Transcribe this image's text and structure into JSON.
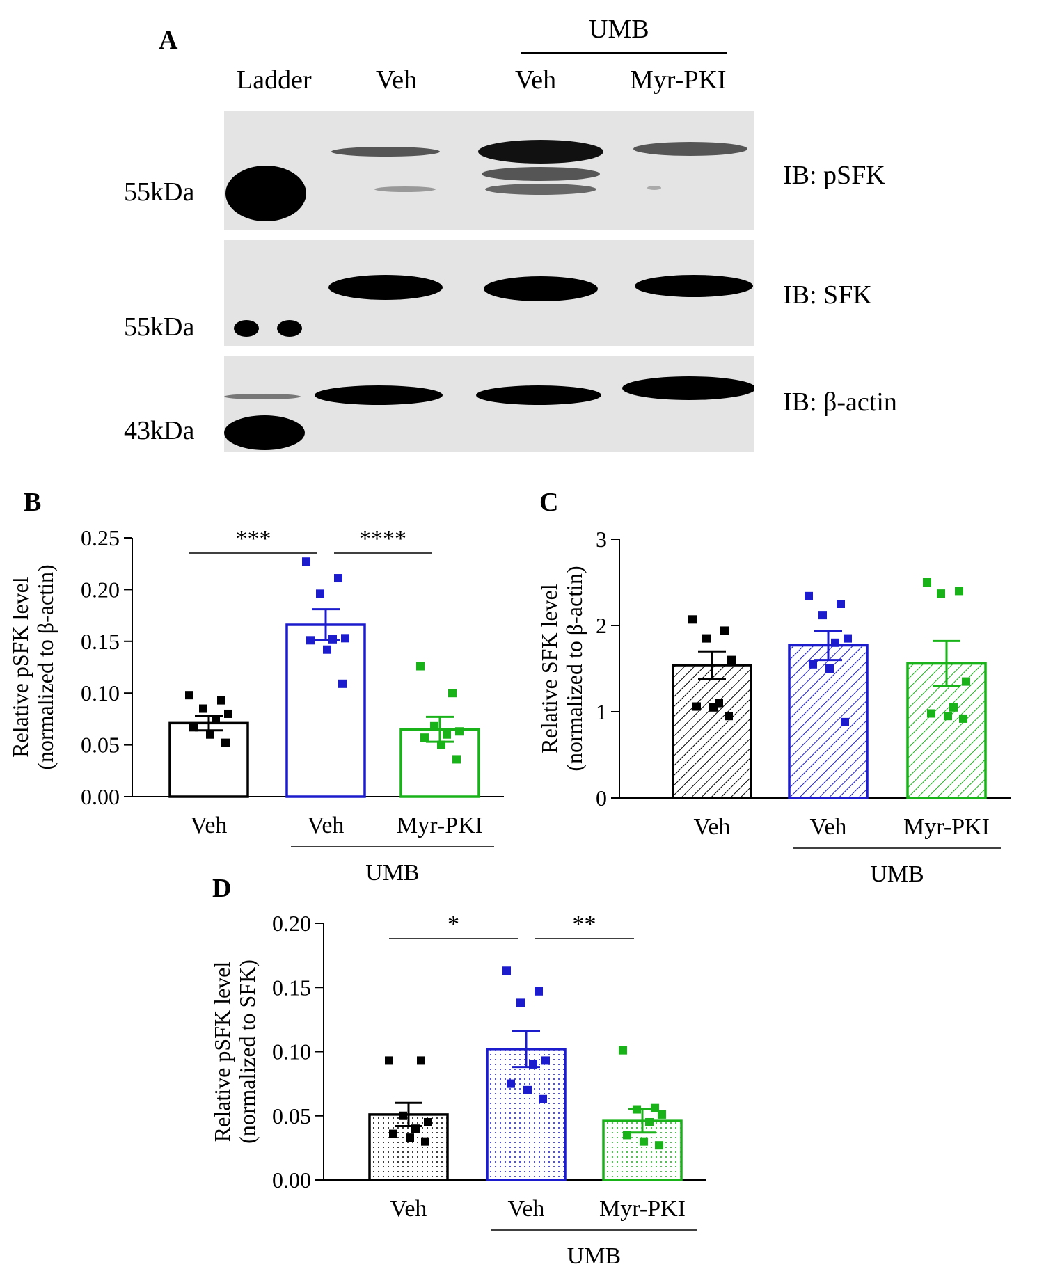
{
  "panels": {
    "a": {
      "letter": "A"
    },
    "b": {
      "letter": "B"
    },
    "c": {
      "letter": "C"
    },
    "d": {
      "letter": "D"
    }
  },
  "western_blot": {
    "group_label": "UMB",
    "lanes": [
      "Ladder",
      "Veh",
      "Veh",
      "Myr-PKI"
    ],
    "markers": [
      "55kDa",
      "55kDa",
      "43kDa"
    ],
    "strips": [
      "IB: pSFK",
      "IB: SFK",
      "IB: β-actin"
    ]
  },
  "colors": {
    "veh": "#000000",
    "umb_veh": "#1c1ccc",
    "umb_pki": "#19b219"
  },
  "chart_data": [
    {
      "id": "b",
      "type": "bar",
      "fill": "open",
      "ylabel_line1": "Relative pSFK level",
      "ylabel_line2": "(normalized to β-actin)",
      "categories": [
        "Veh",
        "Veh",
        "Myr-PKI"
      ],
      "group_label": "UMB",
      "ylim": [
        0,
        0.25
      ],
      "yticks": [
        "0.00",
        "0.05",
        "0.10",
        "0.15",
        "0.20",
        "0.25"
      ],
      "values": [
        0.071,
        0.166,
        0.065
      ],
      "sem": [
        0.007,
        0.015,
        0.012
      ],
      "points": [
        [
          0.098,
          0.093,
          0.085,
          0.08,
          0.074,
          0.067,
          0.06,
          0.052
        ],
        [
          0.227,
          0.211,
          0.196,
          0.153,
          0.152,
          0.151,
          0.142,
          0.109
        ],
        [
          0.126,
          0.1,
          0.068,
          0.063,
          0.06,
          0.057,
          0.05,
          0.036
        ]
      ],
      "significance": [
        {
          "from": 0,
          "to": 1,
          "label": "***"
        },
        {
          "from": 1,
          "to": 2,
          "label": "****"
        }
      ]
    },
    {
      "id": "c",
      "type": "bar",
      "fill": "hatch",
      "ylabel_line1": "Relative SFK level",
      "ylabel_line2": "(normalized to β-actin)",
      "categories": [
        "Veh",
        "Veh",
        "Myr-PKI"
      ],
      "group_label": "UMB",
      "ylim": [
        0,
        3
      ],
      "yticks": [
        "0",
        "1",
        "2",
        "3"
      ],
      "values": [
        1.54,
        1.77,
        1.56
      ],
      "sem": [
        0.16,
        0.17,
        0.26
      ],
      "points": [
        [
          2.07,
          1.94,
          1.85,
          1.6,
          1.1,
          1.06,
          1.05,
          0.95
        ],
        [
          2.34,
          2.25,
          2.12,
          1.85,
          1.8,
          1.55,
          1.5,
          0.88
        ],
        [
          2.5,
          2.4,
          2.37,
          1.35,
          1.05,
          0.98,
          0.95,
          0.92
        ]
      ],
      "significance": []
    },
    {
      "id": "d",
      "type": "bar",
      "fill": "dots",
      "ylabel_line1": "Relative pSFK level",
      "ylabel_line2": "(normalized to SFK)",
      "categories": [
        "Veh",
        "Veh",
        "Myr-PKI"
      ],
      "group_label": "UMB",
      "ylim": [
        0,
        0.2
      ],
      "yticks": [
        "0.00",
        "0.05",
        "0.10",
        "0.15",
        "0.20"
      ],
      "values": [
        0.051,
        0.102,
        0.046
      ],
      "sem": [
        0.009,
        0.014,
        0.009
      ],
      "points": [
        [
          0.093,
          0.093,
          0.05,
          0.045,
          0.04,
          0.036,
          0.033,
          0.03
        ],
        [
          0.163,
          0.147,
          0.138,
          0.093,
          0.09,
          0.075,
          0.07,
          0.063
        ],
        [
          0.101,
          0.056,
          0.055,
          0.051,
          0.045,
          0.035,
          0.03,
          0.027
        ]
      ],
      "significance": [
        {
          "from": 0,
          "to": 1,
          "label": "*"
        },
        {
          "from": 1,
          "to": 2,
          "label": "**"
        }
      ]
    }
  ]
}
